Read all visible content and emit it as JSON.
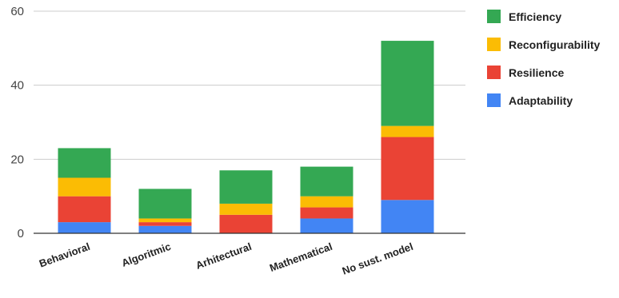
{
  "chart_data": {
    "type": "bar",
    "stacked": true,
    "categories": [
      "Behavioral",
      "Algoritmic",
      "Arhitectural",
      "Mathematical",
      "No sust. model"
    ],
    "series": [
      {
        "name": "Adaptability",
        "color": "#4285f4",
        "values": [
          3,
          2,
          0,
          4,
          9
        ]
      },
      {
        "name": "Resilience",
        "color": "#ea4335",
        "values": [
          7,
          1,
          5,
          3,
          17
        ]
      },
      {
        "name": "Reconfigurability",
        "color": "#fbbc04",
        "values": [
          5,
          1,
          3,
          3,
          3
        ]
      },
      {
        "name": "Efficiency",
        "color": "#34a853",
        "values": [
          8,
          8,
          9,
          8,
          23
        ]
      }
    ],
    "legend_order": [
      "Efficiency",
      "Reconfigurability",
      "Resilience",
      "Adaptability"
    ],
    "yticks": [
      0,
      20,
      40,
      60
    ],
    "ylim": [
      0,
      60
    ],
    "grid": true,
    "legend_position": "top-right"
  }
}
